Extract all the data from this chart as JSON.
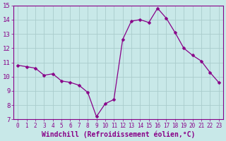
{
  "x": [
    0,
    1,
    2,
    3,
    4,
    5,
    6,
    7,
    8,
    9,
    10,
    11,
    12,
    13,
    14,
    15,
    16,
    17,
    18,
    19,
    20,
    21,
    22,
    23
  ],
  "y": [
    10.8,
    10.7,
    10.6,
    10.1,
    10.2,
    9.7,
    9.6,
    9.4,
    8.9,
    7.2,
    8.1,
    8.4,
    12.6,
    13.9,
    14.0,
    13.8,
    14.8,
    14.1,
    13.1,
    12.0,
    11.5,
    11.1,
    10.3,
    9.6
  ],
  "line_color": "#880088",
  "marker": "D",
  "marker_size": 2.5,
  "bg_color": "#c8e8e8",
  "grid_color": "#aacccc",
  "xlabel": "Windchill (Refroidissement éolien,°C)",
  "xlabel_fontsize": 7,
  "xtick_fontsize": 5.5,
  "ytick_fontsize": 6.5,
  "ylim": [
    7,
    15
  ],
  "xlim": [
    -0.5,
    23.5
  ],
  "yticks": [
    7,
    8,
    9,
    10,
    11,
    12,
    13,
    14,
    15
  ],
  "xticks": [
    0,
    1,
    2,
    3,
    4,
    5,
    6,
    7,
    8,
    9,
    10,
    11,
    12,
    13,
    14,
    15,
    16,
    17,
    18,
    19,
    20,
    21,
    22,
    23
  ],
  "tick_color": "#880088",
  "spine_color": "#880088",
  "xlabel_color": "#880088"
}
